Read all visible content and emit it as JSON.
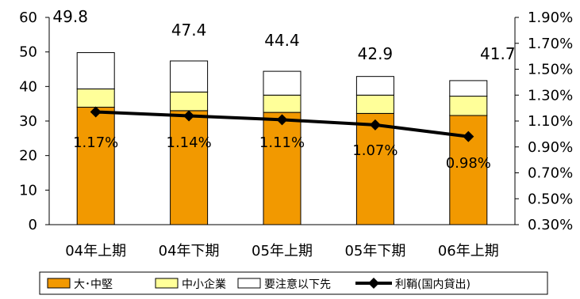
{
  "chart_data": {
    "type": "bar",
    "stacked": true,
    "categories": [
      "04年上期",
      "04年下期",
      "05年上期",
      "05年下期",
      "06年上期"
    ],
    "series": [
      {
        "name": "大･中堅",
        "kind": "bar",
        "axis": "left",
        "color": "#F29900",
        "values": [
          34.0,
          33.0,
          32.5,
          32.2,
          31.6
        ]
      },
      {
        "name": "中小企業",
        "kind": "bar",
        "axis": "left",
        "color": "#FFFF99",
        "values": [
          5.3,
          5.4,
          5.0,
          5.3,
          5.6
        ]
      },
      {
        "name": "要注意以下先",
        "kind": "bar",
        "axis": "left",
        "color": "#FFFFFF",
        "values": [
          10.5,
          9.0,
          6.9,
          5.4,
          4.5
        ]
      },
      {
        "name": "利鞘(国内貸出)",
        "kind": "line",
        "axis": "right",
        "color": "#000000",
        "values": [
          1.17,
          1.14,
          1.11,
          1.07,
          0.98
        ]
      }
    ],
    "totals": [
      "49.8",
      "47.4",
      "44.4",
      "42.9",
      "41.7"
    ],
    "rate_labels": [
      "1.17%",
      "1.14%",
      "1.11%",
      "1.07%",
      "0.98%"
    ],
    "left_axis": {
      "min": 0,
      "max": 60,
      "ticks": [
        "0",
        "10",
        "20",
        "30",
        "40",
        "50",
        "60"
      ]
    },
    "right_axis": {
      "min": 0.3,
      "max": 1.9,
      "ticks": [
        "0.30%",
        "0.50%",
        "0.70%",
        "0.90%",
        "1.10%",
        "1.30%",
        "1.50%",
        "1.70%",
        "1.90%"
      ]
    },
    "grid": false,
    "legend_position": "bottom"
  }
}
